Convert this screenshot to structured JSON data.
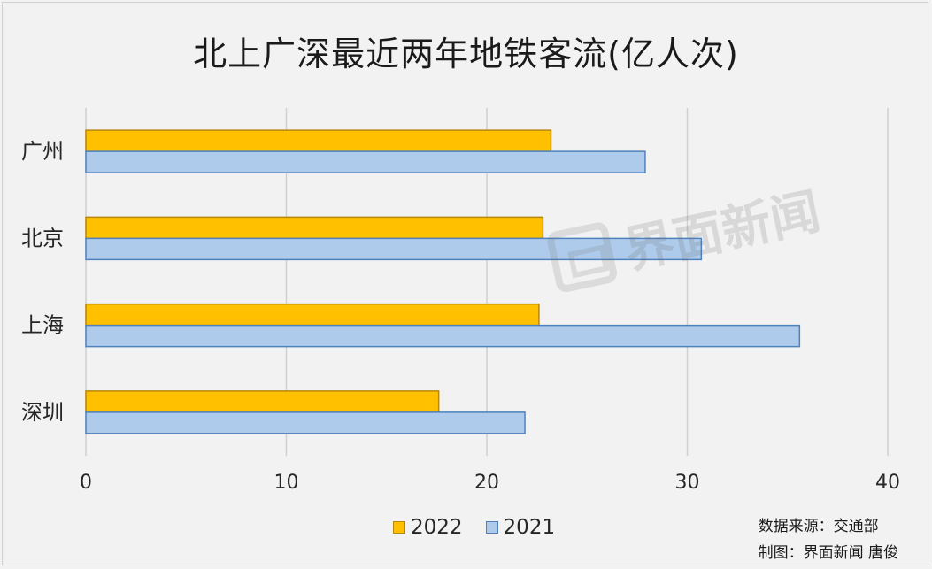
{
  "chart_data": {
    "type": "bar",
    "orientation": "horizontal",
    "title": "北上广深最近两年地铁客流(亿人次)",
    "categories": [
      "广州",
      "北京",
      "上海",
      "深圳"
    ],
    "series": [
      {
        "name": "2022",
        "values": [
          23.2,
          22.8,
          22.6,
          17.6
        ],
        "color": "#ffc000",
        "border": "#b8860b"
      },
      {
        "name": "2021",
        "values": [
          27.9,
          30.7,
          35.6,
          21.9
        ],
        "color": "#aecbeb",
        "border": "#4f81bd"
      }
    ],
    "xlim": [
      0,
      40
    ],
    "xticks": [
      0,
      10,
      20,
      30,
      40
    ],
    "grid": true,
    "legend_position": "bottom"
  },
  "source": {
    "line1": "数据来源：交通部",
    "line2": "制图：界面新闻 唐俊"
  },
  "watermark": "界面新闻"
}
